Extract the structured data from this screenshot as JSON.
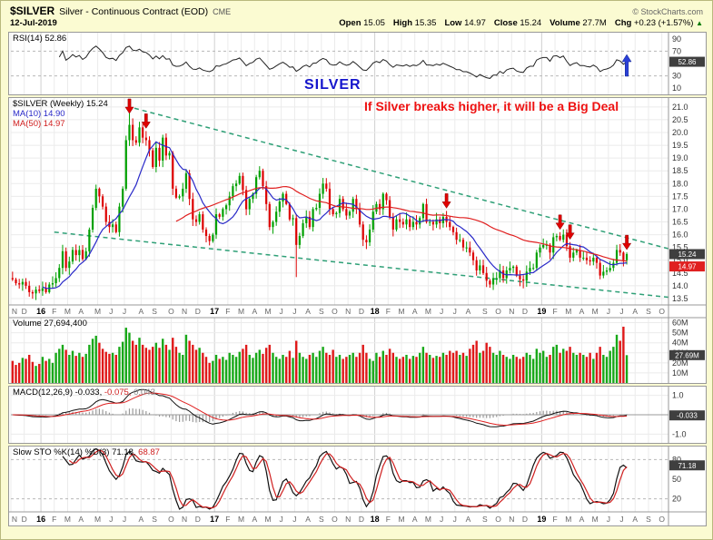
{
  "header": {
    "symbol": "$SILVER",
    "name": "Silver - Continuous Contract (EOD)",
    "exchange": "CME",
    "credit": "© StockCharts.com",
    "date": "12-Jul-2019",
    "quote": [
      {
        "label": "Open",
        "value": "15.05"
      },
      {
        "label": "High",
        "value": "15.35"
      },
      {
        "label": "Low",
        "value": "14.97"
      },
      {
        "label": "Close",
        "value": "15.24"
      },
      {
        "label": "Volume",
        "value": "27.7M"
      },
      {
        "label": "Chg",
        "value": "+0.23 (+1.57%)"
      }
    ],
    "change_direction": "up"
  },
  "panels": {
    "rsi": {
      "legend_label": "RSI(14)",
      "legend_value": "52.86",
      "ticks": [
        90,
        70,
        30,
        10
      ],
      "dashed": [
        70,
        30
      ],
      "flag": "52.86"
    },
    "price": {
      "legend": "$SILVER (Weekly) 15.24",
      "ma10_legend": "MA(10) 14.90",
      "ma50_legend": "MA(50) 14.97",
      "ticks": [
        "21.0",
        "20.5",
        "20.0",
        "19.5",
        "19.0",
        "18.5",
        "18.0",
        "17.5",
        "17.0",
        "16.5",
        "16.0",
        "15.5",
        "15.0",
        "14.5",
        "14.0",
        "13.5"
      ],
      "close_flag": "15.24",
      "ma50_flag": "14.97"
    },
    "volume": {
      "legend": "Volume 27,694,400",
      "ticks": [
        "60M",
        "50M",
        "40M",
        "30M",
        "20M",
        "10M"
      ],
      "flag": "27.69M"
    },
    "macd": {
      "legend_label": "MACD(12,26,9)",
      "values": [
        "-0.033,",
        "-0.075,",
        "0.043"
      ],
      "ticks": [
        "1.0",
        "0.0",
        "-1.0"
      ],
      "flag": "-0.033"
    },
    "stoch": {
      "legend_label": "Slow STO %K(14) %D(3)",
      "values": [
        "71.18,",
        "68.87"
      ],
      "ticks": [
        80,
        50,
        20
      ],
      "dashed": [
        80,
        20
      ],
      "flag": "71.18"
    }
  },
  "annotations": {
    "silver_label": "SILVER",
    "callout": "If Silver breaks higher, it will be a Big Deal",
    "price_arrow_indices": [
      35,
      40,
      130,
      164,
      167,
      184
    ],
    "rsi_up_arrow_index": 184,
    "trendlines": [
      {
        "i1": 37,
        "p1": 20.95,
        "i2": 197,
        "p2": 15.45
      },
      {
        "i1": 13,
        "p1": 16.1,
        "i2": 197,
        "p2": 13.55
      }
    ]
  },
  "axis": {
    "months": [
      [
        "N",
        4
      ],
      [
        "D",
        5
      ],
      [
        "16",
        4
      ],
      [
        "F",
        4
      ],
      [
        "M",
        4
      ],
      [
        "A",
        5
      ],
      [
        "M",
        4
      ],
      [
        "J",
        4
      ],
      [
        "J",
        5
      ],
      [
        "A",
        4
      ],
      [
        "S",
        5
      ],
      [
        "O",
        4
      ],
      [
        "N",
        4
      ],
      [
        "D",
        5
      ],
      [
        "17",
        4
      ],
      [
        "F",
        4
      ],
      [
        "M",
        4
      ],
      [
        "A",
        4
      ],
      [
        "M",
        4
      ],
      [
        "J",
        4
      ],
      [
        "J",
        4
      ],
      [
        "A",
        4
      ],
      [
        "S",
        4
      ],
      [
        "O",
        4
      ],
      [
        "N",
        4
      ],
      [
        "D",
        4
      ],
      [
        "18",
        4
      ],
      [
        "F",
        4
      ],
      [
        "M",
        4
      ],
      [
        "A",
        4
      ],
      [
        "M",
        4
      ],
      [
        "J",
        4
      ],
      [
        "J",
        4
      ],
      [
        "A",
        5
      ],
      [
        "S",
        4
      ],
      [
        "O",
        4
      ],
      [
        "N",
        4
      ],
      [
        "D",
        5
      ],
      [
        "19",
        4
      ],
      [
        "F",
        4
      ],
      [
        "M",
        4
      ],
      [
        "A",
        4
      ],
      [
        "M",
        4
      ],
      [
        "J",
        4
      ],
      [
        "J",
        4
      ],
      [
        "A",
        4
      ],
      [
        "S",
        4
      ],
      [
        "O",
        2
      ]
    ]
  },
  "chart_data": {
    "type": "candlestick",
    "timeframe": "weekly",
    "symbol": "$SILVER",
    "title": "Silver - Continuous Contract (EOD) CME",
    "price_ylim": [
      13.5,
      21.0
    ],
    "rsi_ylim": [
      0,
      100
    ],
    "volume_ylim_millions": [
      0,
      65
    ],
    "macd_ylim": [
      -1.45,
      1.45
    ],
    "stoch_ylim": [
      0,
      100
    ],
    "first_open": 14.3,
    "weekly_close": [
      14.25,
      14.1,
      14.05,
      14.15,
      14,
      13.75,
      13.7,
      13.85,
      13.8,
      13.9,
      13.75,
      14.05,
      14.1,
      14.3,
      14.7,
      15.35,
      14.7,
      14.95,
      15.4,
      15.2,
      15.4,
      15.05,
      15.35,
      16.2,
      17.05,
      17.8,
      17.5,
      17.1,
      16.5,
      16.3,
      16.4,
      16.1,
      17.1,
      17.8,
      19.7,
      20.3,
      19.7,
      19.6,
      20.2,
      19.8,
      19.7,
      19.3,
      18.65,
      19.4,
      18.9,
      19.8,
      19.1,
      19.2,
      17.8,
      17.45,
      17.5,
      17.8,
      18.4,
      17.4,
      16.6,
      16.5,
      16.8,
      16.2,
      15.95,
      15.75,
      16,
      16.8,
      16.7,
      17,
      17.15,
      17.5,
      17.9,
      18,
      18.3,
      17.75,
      17,
      17.4,
      17.6,
      18.25,
      18.5,
      17.9,
      17.2,
      16.3,
      16.5,
      16.9,
      17.3,
      17.6,
      17.2,
      16.6,
      16.65,
      15.6,
      15.95,
      16.45,
      16.7,
      16.3,
      17,
      17.05,
      17.6,
      18,
      17.8,
      17,
      16.8,
      16.85,
      17.4,
      17,
      16.75,
      16.9,
      17.4,
      17,
      16.4,
      15.8,
      15.7,
      16.2,
      16.9,
      17.2,
      17,
      17.6,
      17.35,
      16.7,
      16.2,
      16.6,
      16.5,
      16.4,
      16.6,
      16.3,
      16.5,
      16.4,
      16.65,
      17.2,
      16.5,
      16.5,
      16.4,
      16.6,
      16.45,
      16.7,
      16.5,
      16.3,
      16.1,
      15.8,
      15.8,
      15.5,
      15.5,
      15.3,
      15,
      14.6,
      14.8,
      14.5,
      14.2,
      14.05,
      14.3,
      14.3,
      14.6,
      14.3,
      14.6,
      14.7,
      14.75,
      14.4,
      14.25,
      14.2,
      14.55,
      14.7,
      14.7,
      15.3,
      15.5,
      15.6,
      15.6,
      15.3,
      15.9,
      15.95,
      15.8,
      16,
      15.55,
      15.1,
      15.3,
      15.4,
      15.1,
      15.1,
      15,
      14.95,
      15.1,
      14.9,
      14.4,
      14.55,
      14.6,
      14.7,
      14.9,
      15.4,
      15.3,
      15,
      15.24
    ],
    "weekly_volume_millions": [
      22,
      18,
      20,
      25,
      24,
      28,
      21,
      17,
      19,
      26,
      22,
      24,
      20,
      30,
      34,
      38,
      33,
      28,
      32,
      27,
      30,
      26,
      29,
      38,
      44,
      47,
      40,
      34,
      31,
      29,
      30,
      28,
      36,
      41,
      55,
      50,
      42,
      38,
      45,
      38,
      35,
      33,
      36,
      40,
      35,
      44,
      38,
      33,
      45,
      36,
      30,
      28,
      48,
      42,
      38,
      33,
      35,
      30,
      26,
      20,
      22,
      28,
      24,
      26,
      23,
      30,
      28,
      26,
      31,
      34,
      38,
      28,
      25,
      30,
      33,
      29,
      35,
      38,
      30,
      26,
      24,
      28,
      26,
      32,
      25,
      42,
      30,
      26,
      24,
      28,
      30,
      26,
      32,
      36,
      30,
      28,
      33,
      26,
      28,
      24,
      26,
      28,
      30,
      26,
      30,
      38,
      30,
      24,
      22,
      30,
      26,
      32,
      28,
      34,
      30,
      26,
      24,
      26,
      28,
      24,
      27,
      26,
      30,
      36,
      30,
      28,
      25,
      27,
      26,
      30,
      28,
      32,
      30,
      32,
      28,
      30,
      27,
      34,
      38,
      42,
      30,
      32,
      40,
      36,
      30,
      28,
      32,
      28,
      26,
      24,
      28,
      26,
      24,
      26,
      30,
      28,
      24,
      34,
      30,
      32,
      26,
      28,
      36,
      38,
      30,
      34,
      32,
      36,
      30,
      28,
      30,
      28,
      26,
      30,
      24,
      30,
      36,
      28,
      26,
      32,
      36,
      48,
      42,
      56,
      27.7
    ],
    "wick_overrides": {
      "35": {
        "high": 21.1
      },
      "85": {
        "low": 14.34
      },
      "142": {
        "low": 13.95
      },
      "153": {
        "low": 13.9
      }
    },
    "indicators_current": {
      "rsi": 52.86,
      "macd": [
        -0.033,
        -0.075,
        0.043
      ],
      "stoch_k": 71.18,
      "stoch_d": 68.87,
      "ma10": 14.9,
      "ma50": 14.97,
      "volume": 27694400
    }
  },
  "colors": {
    "up": "#00A000",
    "down": "#DD0000",
    "ma_fast": "#2929C8",
    "ma_slow": "#E02020",
    "macd": "#111111",
    "signal": "#E02020",
    "hist": "#9a9a9a",
    "rsi": "#222222",
    "stoch_k": "#111111",
    "stoch_d": "#D02020",
    "trendline": "#2FA077",
    "flag_bg": "#3F3F3F",
    "annotation_blue": "#1515CC",
    "annotation_red": "#EE1111",
    "arrow_red": "#E00000",
    "arrow_blue": "#2A3FD6",
    "grid": "#ebebeb",
    "grid_year": "#d0d0d0",
    "axis_line": "#999999"
  }
}
